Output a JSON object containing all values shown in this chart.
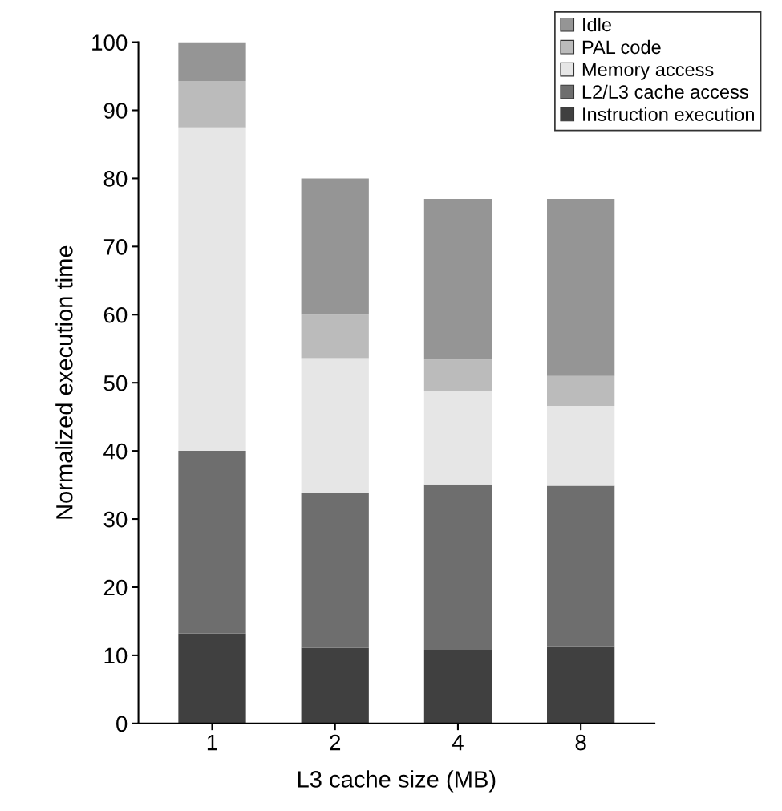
{
  "chart_data": {
    "type": "bar",
    "stacked": true,
    "xlabel": "L3 cache size (MB)",
    "ylabel": "Normalized execution time",
    "categories": [
      "1",
      "2",
      "4",
      "8"
    ],
    "series": [
      {
        "name": "Instruction execution",
        "color": "#404040",
        "values": [
          13.2,
          11.1,
          10.8,
          11.3
        ]
      },
      {
        "name": "L2/L3 cache access",
        "color": "#6e6e6e",
        "values": [
          26.8,
          22.7,
          24.3,
          23.6
        ]
      },
      {
        "name": "Memory access",
        "color": "#e6e6e6",
        "values": [
          47.5,
          19.8,
          13.7,
          11.7
        ]
      },
      {
        "name": "PAL code",
        "color": "#bbbbbb",
        "values": [
          6.8,
          6.4,
          4.6,
          4.4
        ]
      },
      {
        "name": "Idle",
        "color": "#959595",
        "values": [
          5.7,
          20.0,
          23.6,
          26.0
        ]
      }
    ],
    "ylim": [
      0,
      100
    ],
    "yticks": [
      0,
      10,
      20,
      30,
      40,
      50,
      60,
      70,
      80,
      90,
      100
    ],
    "grid": false,
    "legend": "top right"
  }
}
